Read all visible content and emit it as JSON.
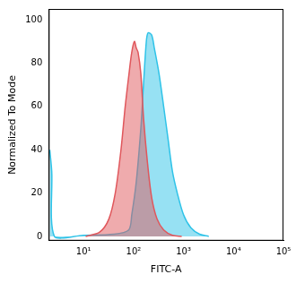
{
  "chart_data": {
    "type": "histogram_overlay",
    "x_label": "FITC-A",
    "y_label": "Normalized To Mode",
    "log": "x",
    "grid": false,
    "xlim": [
      2,
      100000
    ],
    "ylim": [
      -2,
      105
    ],
    "xticks": [
      {
        "value": 10,
        "label": "10¹"
      },
      {
        "value": 100,
        "label": "10²"
      },
      {
        "value": 1000,
        "label": "10³"
      },
      {
        "value": 10000,
        "label": "10⁴"
      },
      {
        "value": 100000,
        "label": "10⁵"
      }
    ],
    "yticks": [
      0,
      20,
      40,
      60,
      80,
      100
    ],
    "series": [
      {
        "color": "#e0575c",
        "x": [
          11,
          21,
          32,
          43,
          56,
          68,
          81,
          92,
          104,
          113,
          123,
          140,
          158,
          188,
          230,
          295,
          400,
          600,
          920
        ],
        "values": [
          0,
          2,
          8,
          20,
          40,
          60,
          75,
          85,
          90,
          87,
          85,
          75,
          55,
          35,
          18,
          8,
          3,
          0.5,
          0
        ]
      },
      {
        "color": "#2fc3e8",
        "x": [
          2.1,
          2.3,
          2.6,
          10,
          40,
          80,
          92,
          113,
          140,
          158,
          180,
          195,
          230,
          260,
          324,
          400,
          490,
          600,
          750,
          1000,
          1400,
          2100,
          3200
        ],
        "values": [
          40,
          30,
          0,
          0.5,
          1,
          3,
          10,
          25,
          50,
          70,
          90,
          94,
          93,
          87,
          75,
          60,
          45,
          30,
          20,
          10,
          4,
          1,
          0
        ]
      }
    ]
  }
}
